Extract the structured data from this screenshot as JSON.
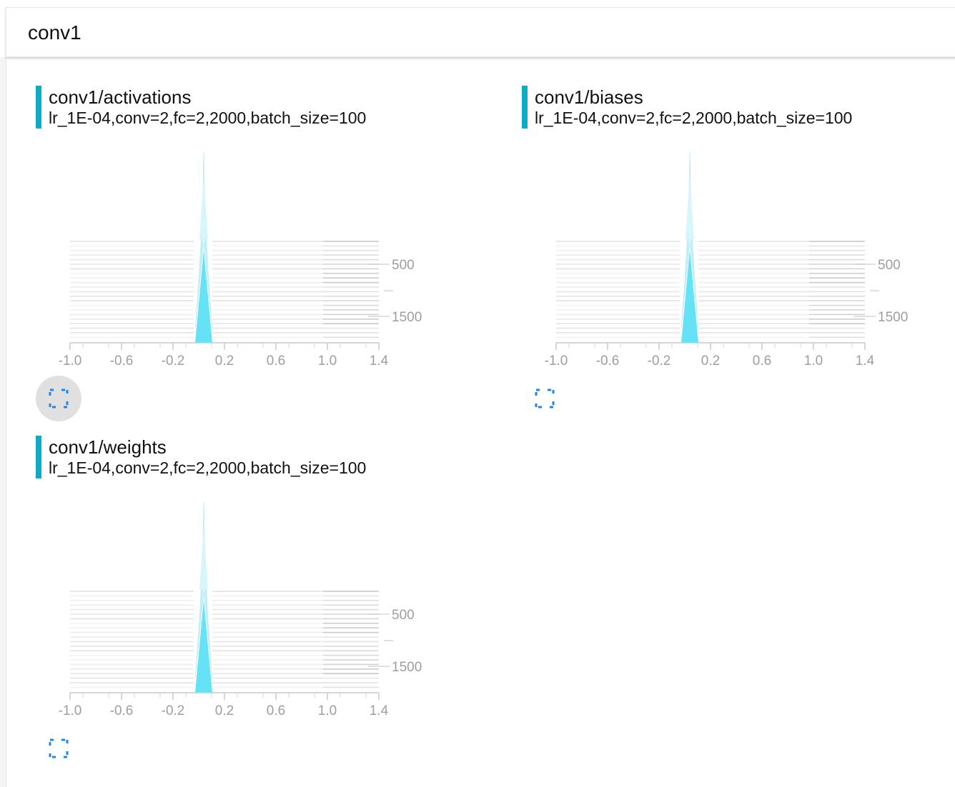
{
  "header": {
    "title": "conv1"
  },
  "cards": [
    {
      "title": "conv1/activations",
      "subtitle": "lr_1E-04,conv=2,fc=2,2000,batch_size=100"
    },
    {
      "title": "conv1/biases",
      "subtitle": "lr_1E-04,conv=2,fc=2,2000,batch_size=100"
    },
    {
      "title": "conv1/weights",
      "subtitle": "lr_1E-04,conv=2,fc=2,2000,batch_size=100"
    }
  ],
  "colors": {
    "accent": "#12a9c3",
    "histogram": "#5ee0f5",
    "expand_icon": "#1e88e5"
  },
  "icons": {
    "expand": "fullscreen-icon"
  },
  "chart_data": [
    {
      "type": "area",
      "x_ticks": [
        "-1.0",
        "-0.6",
        "-0.2",
        "0.2",
        "0.6",
        "1.0",
        "1.4"
      ],
      "xlim": [
        -1.0,
        1.4
      ],
      "y_ticks": [
        "500",
        "1500"
      ],
      "y_axis_side": "right",
      "peak_center": 0.0
    },
    {
      "type": "area",
      "x_ticks": [
        "-1.0",
        "-0.6",
        "-0.2",
        "0.2",
        "0.6",
        "1.0",
        "1.4"
      ],
      "xlim": [
        -1.0,
        1.4
      ],
      "y_ticks": [
        "500",
        "1500"
      ],
      "y_axis_side": "right",
      "peak_center": 0.0
    },
    {
      "type": "area",
      "x_ticks": [
        "-1.0",
        "-0.6",
        "-0.2",
        "0.2",
        "0.6",
        "1.0",
        "1.4"
      ],
      "xlim": [
        -1.0,
        1.4
      ],
      "y_ticks": [
        "500",
        "1500"
      ],
      "y_axis_side": "right",
      "peak_center": 0.0
    }
  ]
}
